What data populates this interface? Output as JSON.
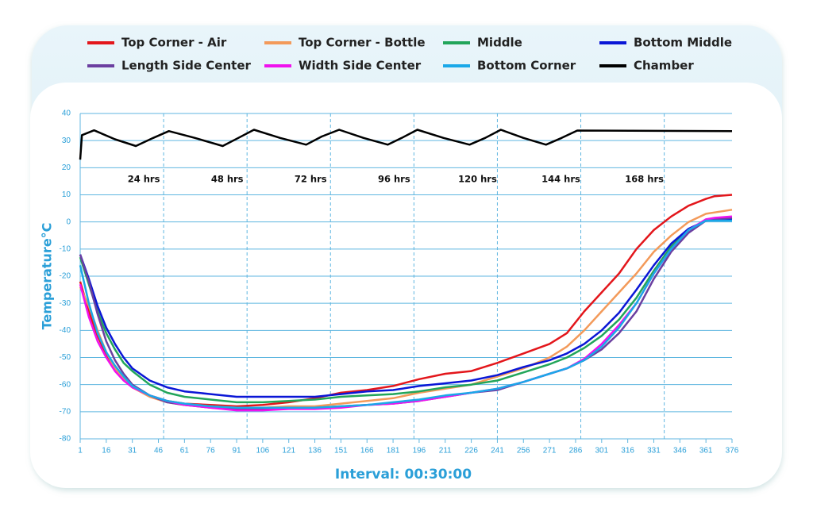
{
  "chart_data": {
    "type": "line",
    "xlabel": "Interval: 00:30:00",
    "ylabel": "Temperature°C",
    "xlim": [
      1,
      376
    ],
    "ylim": [
      -80,
      40
    ],
    "xticks": [
      1,
      16,
      31,
      46,
      61,
      76,
      91,
      106,
      121,
      136,
      151,
      166,
      181,
      196,
      211,
      226,
      241,
      256,
      271,
      286,
      301,
      316,
      331,
      346,
      361,
      376
    ],
    "yticks": [
      -80,
      -70,
      -60,
      -50,
      -40,
      -30,
      -20,
      -10,
      0,
      10,
      20,
      30,
      40
    ],
    "grid": true,
    "vlines": [
      49,
      97,
      145,
      193,
      241,
      289,
      337
    ],
    "annotations": [
      "24 hrs",
      "48 hrs",
      "72 hrs",
      "96 hrs",
      "120 hrs",
      "144 hrs",
      "168 hrs"
    ],
    "x": [
      1,
      6,
      11,
      16,
      21,
      26,
      31,
      41,
      51,
      61,
      76,
      91,
      106,
      121,
      136,
      151,
      166,
      181,
      196,
      211,
      226,
      241,
      256,
      271,
      281,
      291,
      301,
      311,
      321,
      331,
      341,
      351,
      361,
      366,
      376
    ],
    "series": [
      {
        "name": "Top Corner - Air",
        "color": "#e3161b",
        "values": [
          -22,
          -33,
          -42,
          -49,
          -54,
          -58,
          -61,
          -64,
          -66,
          -67,
          -67.5,
          -68,
          -67.5,
          -66.5,
          -65,
          -63,
          -62,
          -60.5,
          -58,
          -56,
          -55,
          -52,
          -48.5,
          -45,
          -41,
          -33,
          -26,
          -19,
          -10,
          -3,
          2,
          6,
          8.5,
          9.5,
          10
        ]
      },
      {
        "name": "Top Corner - Bottle",
        "color": "#f39a5a",
        "values": [
          -24,
          -31,
          -40,
          -48,
          -54,
          -58,
          -61,
          -64.5,
          -66.5,
          -67.5,
          -68,
          -68.5,
          -68.5,
          -68,
          -68,
          -67,
          -66,
          -65,
          -63,
          -61.5,
          -60,
          -57,
          -54,
          -50,
          -46,
          -40,
          -33,
          -26,
          -19,
          -11,
          -5,
          0,
          3,
          3.5,
          4.5
        ]
      },
      {
        "name": "Middle",
        "color": "#22a55a",
        "values": [
          -13,
          -23,
          -33,
          -41,
          -47,
          -52,
          -55,
          -60,
          -63,
          -64.5,
          -65.5,
          -66.5,
          -66.5,
          -66,
          -65.5,
          -64.5,
          -64,
          -63.5,
          -62.5,
          -61,
          -60,
          -58.5,
          -55.5,
          -52.5,
          -50,
          -46.5,
          -42,
          -36,
          -28,
          -18,
          -9,
          -3,
          0.5,
          1,
          1
        ]
      },
      {
        "name": "Bottom Middle",
        "color": "#0a16d6",
        "values": [
          -12,
          -21,
          -31,
          -39,
          -45,
          -50,
          -54,
          -58.5,
          -61,
          -62.5,
          -63.5,
          -64.5,
          -64.5,
          -64.5,
          -64.5,
          -63.5,
          -62.5,
          -62,
          -60.5,
          -59.5,
          -58.5,
          -56.5,
          -53.5,
          -51,
          -48.5,
          -45,
          -40,
          -33.5,
          -25,
          -16,
          -8,
          -2.5,
          0.5,
          1,
          1
        ]
      },
      {
        "name": "Length Side Center",
        "color": "#6b3fa0",
        "values": [
          -12,
          -22,
          -34,
          -44,
          -51,
          -56,
          -60,
          -64,
          -66.5,
          -67.5,
          -68.5,
          -69,
          -69,
          -68.5,
          -68.5,
          -68,
          -67.5,
          -67,
          -66,
          -64.5,
          -63,
          -62,
          -59,
          -56,
          -54,
          -51,
          -47,
          -41,
          -33,
          -21,
          -11,
          -4,
          0.5,
          1,
          1.5
        ]
      },
      {
        "name": "Width Side Center",
        "color": "#f011ee",
        "values": [
          -23,
          -35,
          -44,
          -50,
          -55,
          -58.5,
          -61,
          -64,
          -66,
          -67.5,
          -68.5,
          -69.5,
          -69.5,
          -69,
          -69,
          -68.5,
          -67.5,
          -67,
          -66,
          -64.5,
          -63,
          -61.5,
          -59,
          -56,
          -54,
          -50.5,
          -45,
          -38,
          -30,
          -19,
          -10,
          -3,
          1,
          1.5,
          2
        ]
      },
      {
        "name": "Bottom Corner",
        "color": "#1aa8e8",
        "values": [
          -16,
          -30,
          -41,
          -48,
          -53,
          -57,
          -60.5,
          -64,
          -66,
          -67,
          -68,
          -68.5,
          -68.5,
          -68.5,
          -68.5,
          -68,
          -67.5,
          -66.5,
          -65.5,
          -64,
          -63,
          -61.5,
          -59,
          -56,
          -54,
          -51,
          -46,
          -39,
          -30,
          -19,
          -10,
          -3,
          0.5,
          0.5,
          0.5
        ]
      },
      {
        "name": "Chamber",
        "color": "#000000",
        "x": [
          1,
          2,
          9,
          21,
          33,
          43,
          52,
          67,
          83,
          92,
          101,
          116,
          131,
          140,
          150,
          164,
          178,
          186,
          195,
          210,
          225,
          234,
          243,
          256,
          269,
          278,
          287,
          376
        ],
        "values": [
          23,
          32,
          33.8,
          30.5,
          28,
          31,
          33.5,
          31,
          28,
          31,
          34,
          31,
          28.5,
          31.5,
          34,
          31,
          28.5,
          31,
          34,
          31,
          28.5,
          31,
          34,
          31,
          28.5,
          31,
          33.7,
          33.5
        ]
      }
    ]
  }
}
